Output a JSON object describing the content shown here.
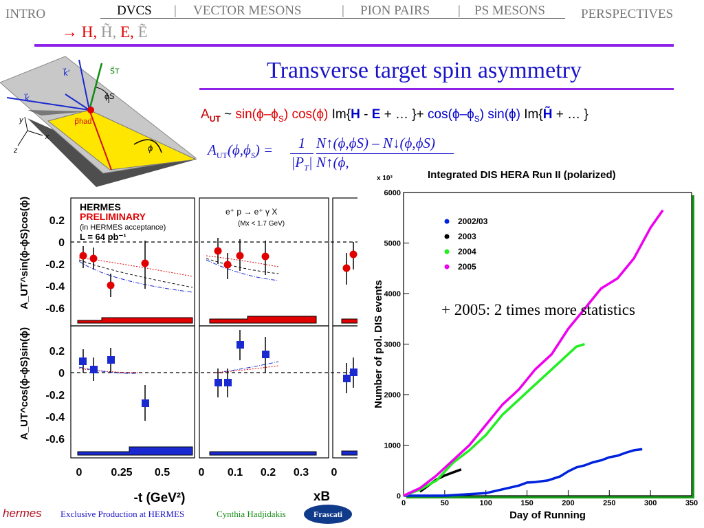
{
  "nav": {
    "intro": "INTRO",
    "dvcs": "DVCS",
    "sep": "|",
    "vector_mesons": "VECTOR MESONS",
    "pion_pairs": "PION PAIRS",
    "ps_mesons": "PS MESONS",
    "perspectives": "PERSPECTIVES"
  },
  "subtitle": {
    "arrow": "→",
    "h": "H,",
    "htilde": "H̃,",
    "e": "E,",
    "etilde": "Ẽ"
  },
  "slide_title": "Transverse target spin asymmetry",
  "formula": {
    "lhs": "A",
    "lhs_sub": "UT",
    "sim": "~",
    "term1": "sin(ϕ–ϕ",
    "term1_sub": "S",
    "term1_end": ")",
    "cos1": "cos(ϕ)",
    "im1": "Im{",
    "h": "H",
    "minus": " - ",
    "e": "E",
    "rest1": " + … }+",
    "term2": "cos(ϕ–ϕ",
    "term2_sub": "S",
    "term2_end": ")",
    "sin2": "sin(ϕ)",
    "im2": "Im{",
    "htilde": "H̃",
    "rest2": " + … }"
  },
  "formula2": {
    "lhs": "A",
    "lhs_sub": "UT",
    "args": "(ϕ,ϕ",
    "args_sub": "S",
    "args_end": ") =",
    "one": "1",
    "pt": "|P",
    "pt_sub": "T",
    "pt_end": "|",
    "num": "N↑(ϕ,ϕS) – N↓(ϕ,ϕS)",
    "den": "N↑(ϕ,"
  },
  "diagram": {
    "k_prime": "k⃗′",
    "k": "k⃗",
    "st": "S⃗T",
    "phis": "ϕS",
    "phad": "p⃗had",
    "phi": "ϕ",
    "y": "y",
    "x": "x",
    "z": "z"
  },
  "hermes_plot": {
    "hermes": "HERMES",
    "preliminary": "PRELIMINARY",
    "acceptance": "(in HERMES acceptance)",
    "lumi": "L = 64 pb⁻¹",
    "reaction": "e⁺ p → e⁺ γ X",
    "mass_cut": "(Mx < 1.7 GeV)",
    "ylabel_top": "A_UT^sin(ϕ-ϕS)cos(ϕ)",
    "ylabel_bottom": "A_UT^cos(ϕ-ϕS)sin(ϕ)",
    "yticks_top": [
      "0.2",
      "0",
      "-0.2",
      "-0.4",
      "-0.6"
    ],
    "yticks_bottom": [
      "0.2",
      "0",
      "-0.2",
      "-0.4",
      "-0.6"
    ],
    "xticks_t": [
      "0",
      "0.25",
      "0.5"
    ],
    "xticks_xb": [
      "0",
      "0.1",
      "0.2",
      "0.3"
    ],
    "xticks_third": [
      "0"
    ],
    "xlabel_t": "-t (GeV²)",
    "xlabel_xb": "xB"
  },
  "chart_data": {
    "type": "line",
    "title": "Integrated DIS HERA Run II (polarized)",
    "xlabel": "Day of Running",
    "ylabel": "Number of pol. DIS events",
    "y_multiplier": "x 10³",
    "xlim": [
      0,
      350
    ],
    "ylim": [
      0,
      6000
    ],
    "xticks": [
      "0",
      "50",
      "100",
      "150",
      "200",
      "250",
      "300",
      "350"
    ],
    "yticks": [
      "0",
      "1000",
      "2000",
      "3000",
      "4000",
      "5000",
      "6000"
    ],
    "legend_position": "top-left",
    "series": [
      {
        "name": "2002/03",
        "color": "#0022dd",
        "x": [
          0,
          50,
          100,
          140,
          150,
          160,
          175,
          190,
          200,
          210,
          220,
          230,
          240,
          250,
          260,
          270,
          280,
          290
        ],
        "y": [
          0,
          0,
          50,
          200,
          260,
          270,
          300,
          380,
          480,
          560,
          600,
          660,
          700,
          760,
          790,
          850,
          900,
          920
        ]
      },
      {
        "name": "2003",
        "color": "#000000",
        "x": [
          20,
          30,
          40,
          50,
          60,
          70
        ],
        "y": [
          80,
          200,
          320,
          400,
          460,
          520
        ]
      },
      {
        "name": "2004",
        "color": "#22ee22",
        "x": [
          0,
          20,
          40,
          60,
          80,
          100,
          120,
          140,
          160,
          180,
          200,
          210,
          220
        ],
        "y": [
          0,
          120,
          300,
          650,
          900,
          1200,
          1600,
          1900,
          2200,
          2500,
          2800,
          2950,
          3000
        ]
      },
      {
        "name": "2005",
        "color": "#ee00ee",
        "x": [
          0,
          20,
          40,
          60,
          80,
          100,
          120,
          140,
          160,
          180,
          200,
          220,
          240,
          260,
          280,
          300,
          315
        ],
        "y": [
          0,
          150,
          400,
          700,
          1000,
          1400,
          1800,
          2100,
          2500,
          2800,
          3300,
          3700,
          4100,
          4300,
          4700,
          5300,
          5650
        ]
      }
    ]
  },
  "annotation": "+ 2005:  2 times more statistics",
  "footer": {
    "logo": "hermes",
    "left": "Exclusive Production at HERMES",
    "author": "Cynthia Hadjidakis",
    "badge": "Frascati"
  },
  "colors": {
    "rule": "#8f24e8",
    "title": "#1a14c8",
    "accent_red": "#e00000"
  }
}
